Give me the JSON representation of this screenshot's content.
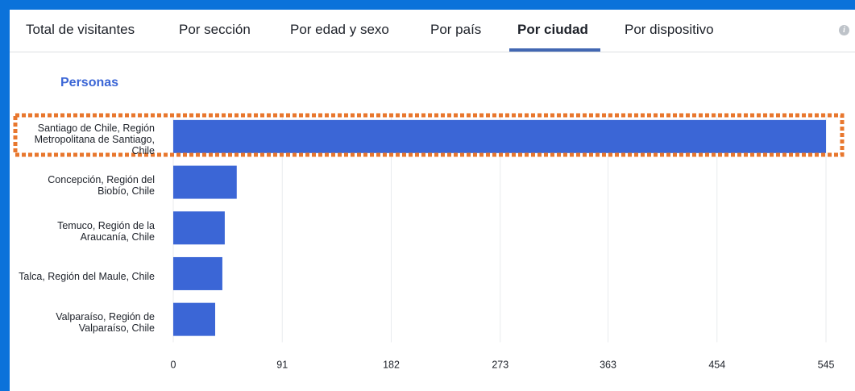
{
  "tabs": [
    "Total de visitantes",
    "Por sección",
    "Por edad y sexo",
    "Por país",
    "Por ciudad",
    "Por dispositivo"
  ],
  "info_icon": "i",
  "chart_data": {
    "type": "bar",
    "orientation": "horizontal",
    "title": "Personas",
    "categories": [
      "Santiago de Chile, Región Metropolitana de Santiago, Chile",
      "Concepción, Región del Biobío, Chile",
      "Temuco, Región de la Araucanía, Chile",
      "Talca, Región del Maule, Chile",
      "Valparaíso, Región de Valparaíso, Chile"
    ],
    "values": [
      545,
      53,
      43,
      41,
      35
    ],
    "color": "#3b66d6",
    "xlim": [
      0,
      545
    ],
    "xticks": [
      0,
      91,
      182,
      273,
      363,
      454,
      545
    ],
    "grid": true
  }
}
